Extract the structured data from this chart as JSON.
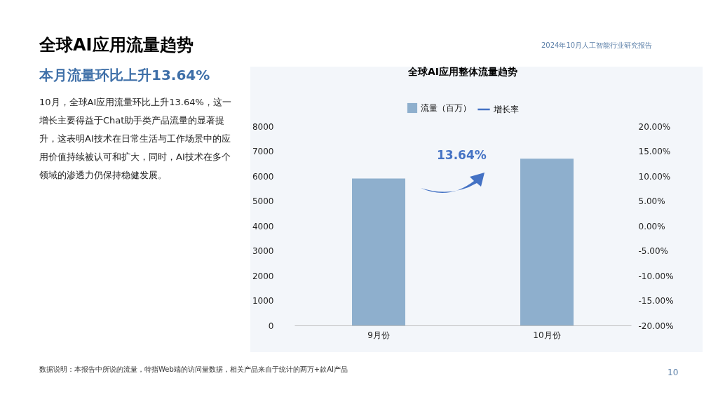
{
  "chart_data": {
    "type": "bar",
    "title": "全球AI应用整体流量趋势",
    "categories": [
      "9月份",
      "10月份"
    ],
    "series": [
      {
        "name": "流量（百万）",
        "color": "#8eafcd",
        "values": [
          5900,
          6700
        ]
      },
      {
        "name": "增长率",
        "type": "line",
        "axis": "y2",
        "color": "#4472c4",
        "values": [
          null,
          null
        ]
      }
    ],
    "ylim": [
      0,
      8000
    ],
    "yticks": [
      0,
      1000,
      2000,
      3000,
      4000,
      5000,
      6000,
      7000,
      8000
    ],
    "y2lim": [
      -20,
      20
    ],
    "y2ticks": [
      {
        "value": -20,
        "label": "-20.00%"
      },
      {
        "value": -15,
        "label": "-15.00%"
      },
      {
        "value": -10,
        "label": "-10.00%"
      },
      {
        "value": -5,
        "label": "-5.00%"
      },
      {
        "value": 0,
        "label": "0.00%"
      },
      {
        "value": 5,
        "label": "5.00%"
      },
      {
        "value": 10,
        "label": "10.00%"
      },
      {
        "value": 15,
        "label": "15.00%"
      },
      {
        "value": 20,
        "label": "20.00%"
      }
    ],
    "grid": false,
    "legend": "top",
    "annotations": [
      "全球AI应用流量趋势",
      "本月流量环比上升13.64%",
      "10月，全球AI应用流量环比上升13.64%，这一增长主要得益于Chat助手类产品流量的显著提升，这表明AI技术在日常生活与工作场景中的应用价值持续被认可和扩大，同时，AI技术在多个领域的渗透力仍保持稳健发展。",
      "2024年10月人工智能行业研究报告",
      "数据说明：本报告中所说的流量，特指Web端的访问量数据，相关产品来自于统计的两万+款AI产品",
      "10",
      "13.64%"
    ]
  }
}
